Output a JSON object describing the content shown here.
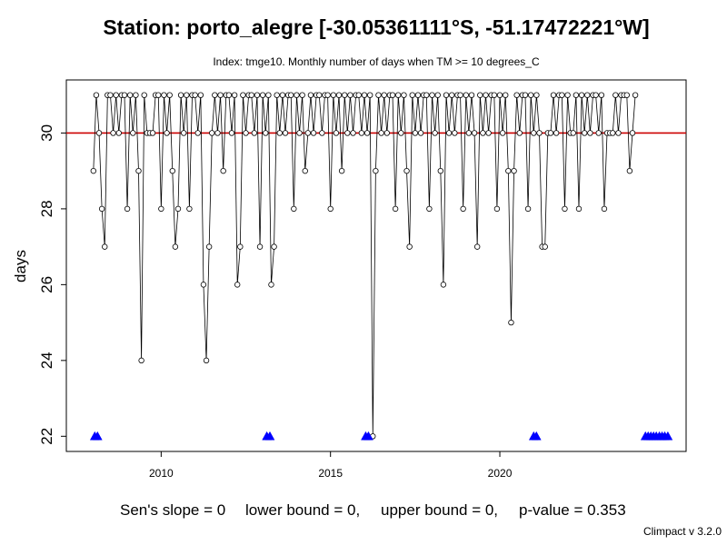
{
  "chart_data": {
    "type": "line",
    "title": "Station: porto_alegre [-30.05361111°S, -51.17472221°W]",
    "subtitle": "Index: tmge10. Monthly number of days when TM >= 10 degrees_C",
    "ylabel": "days",
    "xlim": [
      2007.2,
      2025.5
    ],
    "ylim": [
      21.6,
      31.4
    ],
    "x_ticks": [
      2010,
      2015,
      2020
    ],
    "x_tick_labels": [
      "2010",
      "2015",
      "2020"
    ],
    "y_ticks": [
      22,
      24,
      26,
      28,
      30
    ],
    "y_tick_labels": [
      "22",
      "24",
      "26",
      "28",
      "30"
    ],
    "start_year": 2008,
    "start_month": 1,
    "values": [
      29,
      31,
      30,
      28,
      27,
      31,
      31,
      30,
      31,
      30,
      31,
      31,
      28,
      31,
      30,
      31,
      29,
      24,
      31,
      30,
      30,
      30,
      31,
      31,
      28,
      31,
      30,
      31,
      29,
      27,
      28,
      31,
      30,
      31,
      28,
      31,
      31,
      30,
      31,
      26,
      24,
      27,
      30,
      31,
      30,
      31,
      29,
      31,
      31,
      30,
      31,
      26,
      27,
      31,
      30,
      31,
      31,
      30,
      31,
      27,
      31,
      30,
      31,
      26,
      27,
      31,
      30,
      31,
      30,
      31,
      31,
      28,
      31,
      30,
      31,
      29,
      30,
      31,
      30,
      31,
      31,
      30,
      31,
      31,
      28,
      31,
      30,
      31,
      29,
      31,
      30,
      31,
      30,
      31,
      31,
      30,
      31,
      30,
      31,
      22,
      29,
      31,
      30,
      31,
      30,
      31,
      31,
      28,
      31,
      30,
      31,
      29,
      27,
      31,
      30,
      31,
      30,
      31,
      31,
      28,
      31,
      30,
      31,
      29,
      26,
      31,
      30,
      31,
      30,
      31,
      31,
      28,
      31,
      30,
      31,
      30,
      27,
      31,
      30,
      31,
      30,
      31,
      31,
      28,
      31,
      30,
      31,
      29,
      25,
      29,
      31,
      30,
      31,
      31,
      28,
      31,
      30,
      31,
      30,
      27,
      27,
      30,
      30,
      31,
      30,
      31,
      31,
      28,
      31,
      30,
      30,
      31,
      28,
      31,
      30,
      31,
      30,
      31,
      31,
      30,
      31,
      28,
      30,
      30,
      30,
      31,
      30,
      31,
      31,
      31,
      29,
      30,
      31
    ],
    "trend_line": {
      "value": 30,
      "color": "#cc0000"
    },
    "missing_marker_x": [
      2008.04,
      2008.12,
      2013.12,
      2013.21,
      2016.04,
      2016.12,
      2021.0,
      2021.08,
      2024.3,
      2024.38,
      2024.46,
      2024.54,
      2024.62,
      2024.71,
      2024.79,
      2024.87,
      2024.96
    ],
    "missing_marker_y": 22,
    "missing_marker_color": "#0000ff",
    "line_color": "#000000"
  },
  "stats": {
    "sens_slope": "Sen's slope = 0",
    "lower_bound": "lower bound = 0,",
    "upper_bound": "upper bound = 0,",
    "p_value": "p-value = 0.353"
  },
  "credit": "Climpact v 3.2.0"
}
